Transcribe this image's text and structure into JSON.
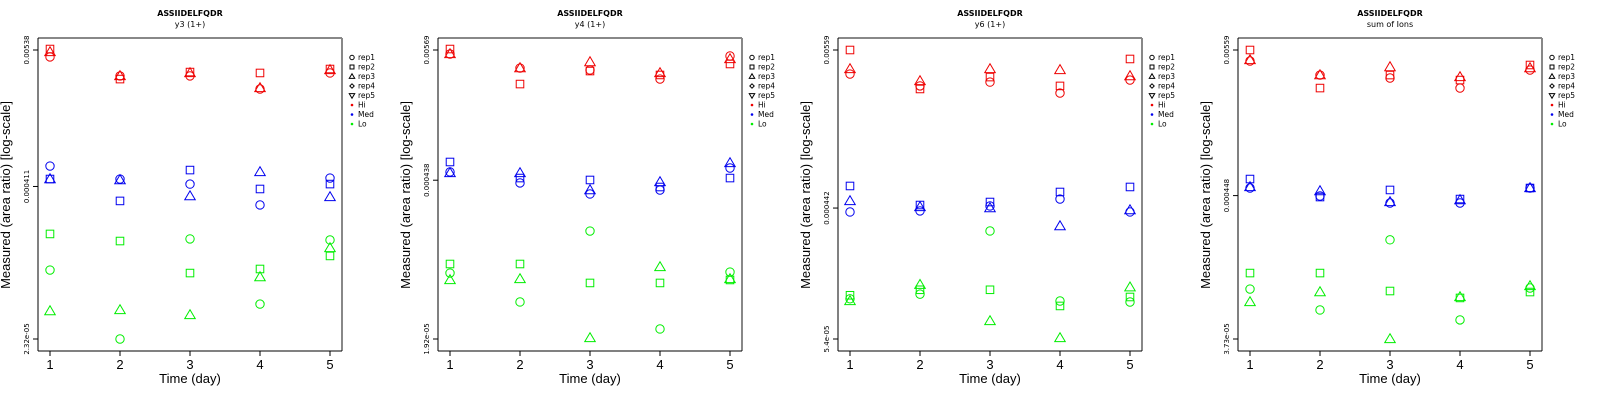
{
  "legend": {
    "reps": [
      {
        "label": "rep1",
        "shape": "circle"
      },
      {
        "label": "rep2",
        "shape": "square"
      },
      {
        "label": "rep3",
        "shape": "triangle-up"
      },
      {
        "label": "rep4",
        "shape": "diamond"
      },
      {
        "label": "rep5",
        "shape": "triangle-down"
      }
    ],
    "levels": [
      {
        "label": "Hi",
        "color": "#ee0000"
      },
      {
        "label": "Med",
        "color": "#0000ee"
      },
      {
        "label": "Lo",
        "color": "#00ee00"
      }
    ]
  },
  "chart_data": [
    {
      "type": "scatter",
      "title": "ASSIIDELFQDR",
      "subtitle": "y3 (1+)",
      "xlabel": "Time (day)",
      "ylabel": "Measured (area ratio) [log-scale]",
      "yscale": "log",
      "x_ticks": [
        "1",
        "2",
        "3",
        "4",
        "5"
      ],
      "y_ticks": [
        "0.00538",
        "0.000411",
        "2.32e-05"
      ],
      "y_tick_values": [
        0.00538,
        0.000411,
        2.32e-05
      ],
      "x": [
        1,
        2,
        3,
        4,
        5
      ],
      "series": [
        {
          "level": "Hi",
          "rep": "rep1",
          "values": [
            0.00472,
            0.0033,
            0.0033,
            0.00258,
            0.00349
          ]
        },
        {
          "level": "Hi",
          "rep": "rep2",
          "values": [
            0.00548,
            0.00311,
            0.00355,
            0.00349,
            0.00376
          ]
        },
        {
          "level": "Hi",
          "rep": "rep3",
          "values": [
            0.00518,
            0.0033,
            0.00349,
            0.00263,
            0.00369
          ]
        },
        {
          "level": "Med",
          "rep": "rep1",
          "values": [
            0.000604,
            0.000473,
            0.00043,
            0.00029,
            0.000482
          ]
        },
        {
          "level": "Med",
          "rep": "rep2",
          "values": [
            0.000473,
            0.000313,
            0.00056,
            0.000392,
            0.00043
          ]
        },
        {
          "level": "Med",
          "rep": "rep3",
          "values": [
            0.000473,
            0.000464,
            0.000343,
            0.00054,
            0.000337
          ]
        },
        {
          "level": "Lo",
          "rep": "rep1",
          "values": [
            8.51e-05,
            2.32e-05,
            0.000153,
            4.48e-05,
            0.00015
          ]
        },
        {
          "level": "Lo",
          "rep": "rep2",
          "values": [
            0.000168,
            0.000147,
            8.04e-05,
            8.68e-05,
            0.000111
          ]
        },
        {
          "level": "Lo",
          "rep": "rep3",
          "values": [
            3.93e-05,
            4.01e-05,
            3.65e-05,
            7.46e-05,
            0.000129
          ]
        }
      ]
    },
    {
      "type": "scatter",
      "title": "ASSIIDELFQDR",
      "subtitle": "y4 (1+)",
      "xlabel": "Time (day)",
      "ylabel": "Measured (area ratio) [log-scale]",
      "yscale": "log",
      "x_ticks": [
        "1",
        "2",
        "3",
        "4",
        "5"
      ],
      "y_ticks": [
        "0.00569",
        "0.000438",
        "1.92e-05"
      ],
      "y_tick_values": [
        0.00569,
        0.000438,
        1.92e-05
      ],
      "x": [
        1,
        2,
        3,
        4,
        5
      ],
      "series": [
        {
          "level": "Hi",
          "rep": "rep1",
          "values": [
            0.00526,
            0.00399,
            0.00384,
            0.00321,
            0.00506
          ]
        },
        {
          "level": "Hi",
          "rep": "rep2",
          "values": [
            0.0058,
            0.00291,
            0.00376,
            0.00348,
            0.00432
          ]
        },
        {
          "level": "Hi",
          "rep": "rep3",
          "values": [
            0.00526,
            0.00399,
            0.00449,
            0.00362,
            0.00477
          ]
        },
        {
          "level": "Med",
          "rep": "rep1",
          "values": [
            0.000515,
            0.000415,
            0.000334,
            0.000361,
            0.000557
          ]
        },
        {
          "level": "Med",
          "rep": "rep2",
          "values": [
            0.000627,
            0.000457,
            0.00044,
            0.000383,
            0.000457
          ]
        },
        {
          "level": "Med",
          "rep": "rep3",
          "values": [
            0.000505,
            0.000505,
            0.000361,
            0.000423,
            0.000615
          ]
        },
        {
          "level": "Lo",
          "rep": "rep1",
          "values": [
            7.04e-05,
            3.98e-05,
            0.000161,
            2.34e-05,
            7.18e-05
          ]
        },
        {
          "level": "Lo",
          "rep": "rep2",
          "values": [
            8.41e-05,
            8.41e-05,
            5.79e-05,
            5.79e-05,
            6.14e-05
          ]
        },
        {
          "level": "Lo",
          "rep": "rep3",
          "values": [
            6.14e-05,
            6.26e-05,
            1.96e-05,
            7.93e-05,
            6.26e-05
          ]
        }
      ]
    },
    {
      "type": "scatter",
      "title": "ASSIIDELFQDR",
      "subtitle": "y6 (1+)",
      "xlabel": "Time (day)",
      "ylabel": "Measured (area ratio) [log-scale]",
      "yscale": "log",
      "x_ticks": [
        "1",
        "2",
        "3",
        "4",
        "5"
      ],
      "y_ticks": [
        "0.00559",
        "0.000442",
        "5.4e-05"
      ],
      "y_tick_values": [
        0.00559,
        0.000442,
        5.4e-05
      ],
      "x": [
        1,
        2,
        3,
        4,
        5
      ],
      "series": [
        {
          "level": "Hi",
          "rep": "rep1",
          "values": [
            0.0038,
            0.00314,
            0.00334,
            0.0028,
            0.00345
          ]
        },
        {
          "level": "Hi",
          "rep": "rep2",
          "values": [
            0.00559,
            0.00299,
            0.00362,
            0.00314,
            0.00484
          ]
        },
        {
          "level": "Hi",
          "rep": "rep3",
          "values": [
            0.00412,
            0.0034,
            0.00412,
            0.00406,
            0.00368
          ]
        },
        {
          "level": "Med",
          "rep": "rep1",
          "values": [
            0.000415,
            0.000422,
            0.000457,
            0.000511,
            0.000415
          ]
        },
        {
          "level": "Med",
          "rep": "rep2",
          "values": [
            0.00063,
            0.000464,
            0.000487,
            0.000572,
            0.00062
          ]
        },
        {
          "level": "Med",
          "rep": "rep3",
          "values": [
            0.000495,
            0.00045,
            0.000442,
            0.000331,
            0.000428
          ]
        },
        {
          "level": "Lo",
          "rep": "rep1",
          "values": [
            0.000103,
            0.000111,
            0.000306,
            9.94e-05,
            9.78e-05
          ]
        },
        {
          "level": "Lo",
          "rep": "rep2",
          "values": [
            0.000109,
            0.000119,
            0.000119,
            9.18e-05,
            0.000106
          ]
        },
        {
          "level": "Lo",
          "rep": "rep3",
          "values": [
            9.94e-05,
            0.000129,
            7.21e-05,
            5.49e-05,
            0.000124
          ]
        }
      ]
    },
    {
      "type": "scatter",
      "title": "ASSIIDELFQDR",
      "subtitle": "sum of Ions",
      "xlabel": "Time (day)",
      "ylabel": "Measured (area ratio) [log-scale]",
      "yscale": "log",
      "x_ticks": [
        "1",
        "2",
        "3",
        "4",
        "5"
      ],
      "y_ticks": [
        "0.00559",
        "0.000448",
        "3.73e-05"
      ],
      "y_tick_values": [
        0.00559,
        0.000448,
        3.73e-05
      ],
      "x": [
        1,
        2,
        3,
        4,
        5
      ],
      "series": [
        {
          "level": "Hi",
          "rep": "rep1",
          "values": [
            0.00462,
            0.00362,
            0.00344,
            0.00289,
            0.00395
          ]
        },
        {
          "level": "Hi",
          "rep": "rep2",
          "values": [
            0.00559,
            0.00289,
            0.00362,
            0.00332,
            0.00431
          ]
        },
        {
          "level": "Hi",
          "rep": "rep3",
          "values": [
            0.0047,
            0.00362,
            0.00416,
            0.0035,
            0.00409
          ]
        },
        {
          "level": "Med",
          "rep": "rep1",
          "values": [
            0.000511,
            0.000445,
            0.000394,
            0.000394,
            0.000511
          ]
        },
        {
          "level": "Med",
          "rep": "rep2",
          "values": [
            0.000597,
            0.000437,
            0.000494,
            0.000422,
            0.000511
          ]
        },
        {
          "level": "Med",
          "rep": "rep3",
          "values": [
            0.00052,
            0.000485,
            0.000401,
            0.000415,
            0.000511
          ]
        },
        {
          "level": "Lo",
          "rep": "rep1",
          "values": [
            8.87e-05,
            6.17e-05,
            0.000208,
            5.19e-05,
            9.03e-05
          ]
        },
        {
          "level": "Lo",
          "rep": "rep2",
          "values": [
            0.000117,
            0.000117,
            8.57e-05,
            7.6e-05,
            8.42e-05
          ]
        },
        {
          "level": "Lo",
          "rep": "rep3",
          "values": [
            7.09e-05,
            8.42e-05,
            3.73e-05,
            7.73e-05,
            9.35e-05
          ]
        }
      ]
    }
  ]
}
